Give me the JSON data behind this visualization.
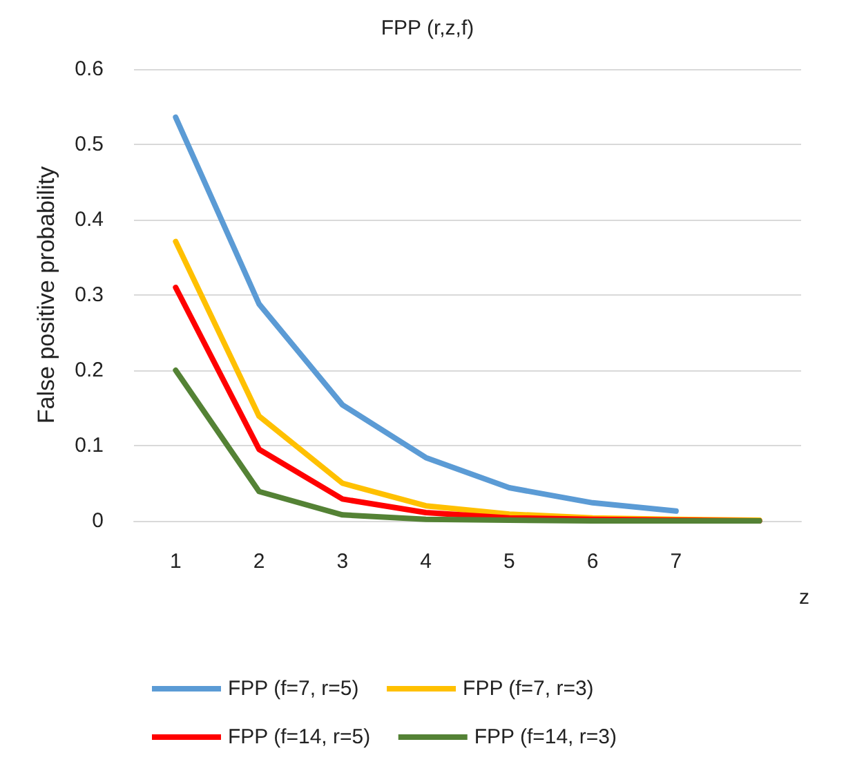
{
  "chart_data": {
    "type": "line",
    "title": "FPP (r,z,f)",
    "xlabel": "z",
    "ylabel": "False positive probability",
    "categories": [
      "1",
      "2",
      "3",
      "4",
      "5",
      "6",
      "7",
      null
    ],
    "series": [
      {
        "name": "FPP (f=7, r=5)",
        "color": "#5b9bd5",
        "values": [
          0.536,
          0.288,
          0.154,
          0.084,
          0.044,
          0.024,
          0.013,
          null
        ]
      },
      {
        "name": "FPP (f=7, r=3)",
        "color": "#ffc000",
        "values": [
          0.371,
          0.139,
          0.05,
          0.02,
          0.009,
          0.004,
          0.002,
          0.001
        ]
      },
      {
        "name": "FPP (f=14, r=5)",
        "color": "#ff0000",
        "values": [
          0.31,
          0.095,
          0.029,
          0.011,
          0.004,
          0.002,
          0.001,
          0
        ]
      },
      {
        "name": "FPP (f=14, r=3)",
        "color": "#548235",
        "values": [
          0.2,
          0.039,
          0.008,
          0.002,
          0.001,
          0,
          0,
          0
        ]
      }
    ],
    "ylim": [
      0,
      0.6
    ],
    "yticks": [
      0,
      0.1,
      0.2,
      0.3,
      0.4,
      0.5,
      0.6
    ],
    "grid": "y",
    "legend": "bottom",
    "marker": "none",
    "line_style": "solid"
  }
}
